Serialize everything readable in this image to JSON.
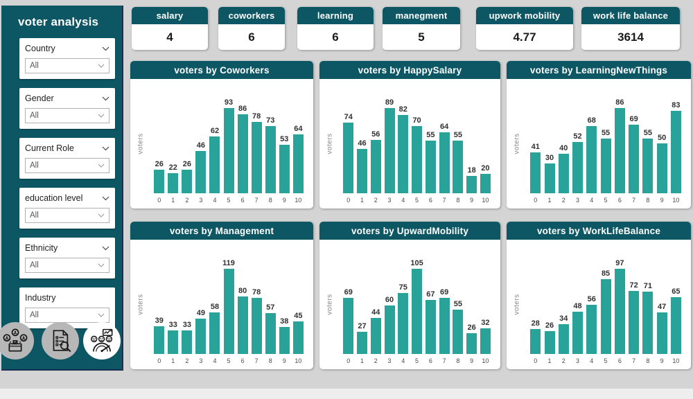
{
  "colors": {
    "dark_teal": "#0d5765",
    "bar_teal": "#29a39a",
    "canvas_bg": "#d4d4d4"
  },
  "sidebar": {
    "title": "voter analysis",
    "filters": [
      {
        "label": "Country",
        "value": "All",
        "collapsible": true
      },
      {
        "label": "Gender",
        "value": "All",
        "collapsible": true
      },
      {
        "label": "Current Role",
        "value": "All",
        "collapsible": true
      },
      {
        "label": "education level",
        "value": "All",
        "collapsible": true
      },
      {
        "label": "Ethnicity",
        "value": "All",
        "collapsible": true
      },
      {
        "label": "Industry",
        "value": "All",
        "collapsible": false
      }
    ],
    "icon_buttons": [
      {
        "name": "voting-people-icon"
      },
      {
        "name": "survey-document-icon"
      },
      {
        "name": "satisfaction-gauge-icon"
      }
    ]
  },
  "kpis": [
    {
      "label": "salary",
      "value": "4"
    },
    {
      "label": "coworkers",
      "value": "6"
    },
    {
      "label": "learning",
      "value": "6"
    },
    {
      "label": "manegment",
      "value": "5"
    },
    {
      "label": "upwork mobility",
      "value": "4.77"
    },
    {
      "label": "work life balance",
      "value": "3614"
    }
  ],
  "chart_data": [
    {
      "type": "bar",
      "title": "voters by Coworkers",
      "ylabel": "voters",
      "categories": [
        "0",
        "1",
        "2",
        "3",
        "4",
        "5",
        "6",
        "7",
        "8",
        "9",
        "10"
      ],
      "values": [
        26,
        22,
        26,
        46,
        62,
        93,
        86,
        78,
        73,
        53,
        64
      ],
      "labels_on_bars": true,
      "grid": false,
      "legend": false
    },
    {
      "type": "bar",
      "title": "voters by HappySalary",
      "ylabel": "voters",
      "categories": [
        "0",
        "1",
        "2",
        "3",
        "4",
        "5",
        "6",
        "7",
        "8",
        "9",
        "10"
      ],
      "values": [
        74,
        46,
        56,
        89,
        82,
        70,
        55,
        64,
        55,
        18,
        20
      ],
      "labels_on_bars": true,
      "grid": false,
      "legend": false
    },
    {
      "type": "bar",
      "title": "voters by LearningNewThings",
      "ylabel": "voters",
      "categories": [
        "0",
        "1",
        "2",
        "3",
        "4",
        "5",
        "6",
        "7",
        "8",
        "9",
        "10"
      ],
      "values": [
        41,
        30,
        40,
        52,
        68,
        55,
        86,
        69,
        55,
        50,
        83
      ],
      "labels_on_bars": true,
      "grid": false,
      "legend": false
    },
    {
      "type": "bar",
      "title": "voters by Management",
      "ylabel": "voters",
      "categories": [
        "0",
        "1",
        "2",
        "3",
        "4",
        "5",
        "6",
        "7",
        "8",
        "9",
        "10"
      ],
      "values": [
        39,
        33,
        33,
        49,
        58,
        119,
        80,
        78,
        57,
        38,
        45
      ],
      "labels_on_bars": true,
      "grid": false,
      "legend": false
    },
    {
      "type": "bar",
      "title": "voters by UpwardMobility",
      "ylabel": "voters",
      "categories": [
        "0",
        "1",
        "2",
        "3",
        "4",
        "5",
        "6",
        "7",
        "8",
        "9",
        "10"
      ],
      "values": [
        69,
        27,
        44,
        60,
        75,
        105,
        67,
        69,
        55,
        26,
        32
      ],
      "labels_on_bars": true,
      "grid": false,
      "legend": false
    },
    {
      "type": "bar",
      "title": "voters by WorkLifeBalance",
      "ylabel": "voters",
      "categories": [
        "0",
        "1",
        "2",
        "3",
        "4",
        "5",
        "6",
        "7",
        "8",
        "9",
        "10"
      ],
      "values": [
        28,
        26,
        34,
        48,
        56,
        85,
        97,
        72,
        71,
        47,
        65
      ],
      "labels_on_bars": true,
      "grid": false,
      "legend": false
    }
  ]
}
